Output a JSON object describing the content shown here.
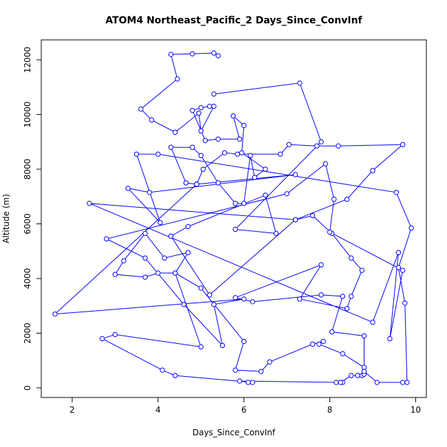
{
  "chart_data": {
    "type": "line",
    "title": "ATOM4 Northeast_Pacific_2 Days_Since_ConvInf",
    "xlabel": "Days_Since_ConvInf",
    "ylabel": "Altitude (m)",
    "xlim": [
      1.28,
      10.25
    ],
    "ylim": [
      -352,
      12730
    ],
    "xticks": [
      2,
      4,
      6,
      8,
      10
    ],
    "yticks": [
      0,
      2000,
      4000,
      6000,
      8000,
      10000,
      12000
    ],
    "grid": false,
    "markers": true,
    "x": [
      5.4,
      5.3,
      4.8,
      4.3,
      4.45,
      3.6,
      3.85,
      4.4,
      4.95,
      5.0,
      5.3,
      5.2,
      5.0,
      4.8,
      5.1,
      5.4,
      5.9,
      5.75,
      6.0,
      5.95,
      6.5,
      6.25,
      6.15,
      6.0,
      5.8,
      5.4,
      5.0,
      4.8,
      4.3,
      4.65,
      4.9,
      5.05,
      5.55,
      5.85,
      6.85,
      7.05,
      7.7,
      8.2,
      9.7,
      9.0,
      8.4,
      7.2,
      7.6,
      8.05,
      8.5,
      8.75,
      8.5,
      8.4,
      7.3,
      7.8,
      5.8,
      6.2,
      7.8,
      8.3,
      8.05,
      8.8,
      8.8,
      8.3,
      7.75,
      7.85,
      7.6,
      6.6,
      6.4,
      5.8,
      6.0,
      5.0,
      4.4,
      4.0,
      3.7,
      3.0,
      3.2,
      3.7,
      4.15,
      4.7,
      4.4,
      5.0,
      3.0,
      2.7,
      4.1,
      4.4,
      6.2,
      6.1,
      5.9,
      8.15,
      8.3,
      8.25,
      8.5,
      8.65,
      8.75,
      8.8,
      8.8,
      9.1,
      9.7,
      9.8,
      9.75,
      9.6,
      9.9,
      9.55,
      4.0,
      3.5,
      4.05,
      3.3,
      3.8,
      7.2,
      4.9,
      1.6,
      6.0,
      5.3,
      5.5,
      4.6,
      3.7,
      2.8,
      7.0,
      7.9,
      8.1,
      8.0,
      9.7,
      9.4,
      9.6,
      9.0,
      2.4,
      7.2,
      5.2,
      4.3,
      4.7,
      6.5,
      6.75,
      5.8,
      7.8,
      7.3,
      5.3
    ],
    "series": [
      {
        "color": "#0000ff",
        "values": [
          12150,
          12250,
          12220,
          12200,
          11300,
          10200,
          9800,
          9350,
          10050,
          9400,
          10300,
          10300,
          10250,
          10150,
          9050,
          9100,
          9100,
          9950,
          9600,
          8600,
          8000,
          7700,
          8500,
          6750,
          6750,
          7500,
          8500,
          8800,
          8800,
          7500,
          7450,
          8000,
          8600,
          8550,
          8550,
          8900,
          8850,
          8850,
          8900,
          7950,
          6900,
          6150,
          6300,
          5650,
          4750,
          4300,
          3350,
          2900,
          3250,
          4500,
          3300,
          3150,
          3400,
          3350,
          2050,
          1900,
          750,
          1250,
          1600,
          1700,
          1600,
          950,
          600,
          650,
          1700,
          3650,
          4200,
          4200,
          4050,
          4150,
          4650,
          5650,
          4750,
          4950,
          4200,
          1500,
          1950,
          1800,
          650,
          450,
          200,
          200,
          250,
          200,
          200,
          200,
          450,
          450,
          450,
          500,
          600,
          200,
          200,
          200,
          3100,
          4400,
          5850,
          7150,
          8550,
          8550,
          6050,
          7300,
          7150,
          7800,
          7450,
          2700,
          3250,
          3050,
          1550,
          3050,
          4750,
          5450,
          7100,
          8200,
          6900,
          5700,
          4300,
          1800,
          4950,
          2400,
          6750,
          6150,
          3400,
          5550,
          5900,
          7050,
          5650,
          5800,
          9000,
          11150,
          10750
        ]
      }
    ]
  }
}
